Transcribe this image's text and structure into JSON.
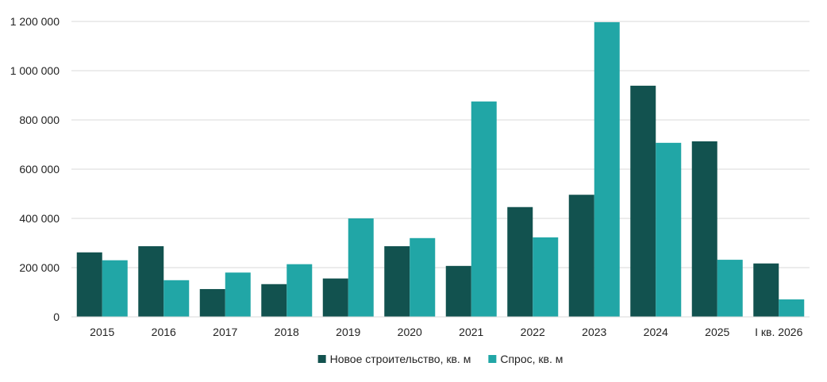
{
  "chart_data": {
    "type": "bar",
    "categories": [
      "2015",
      "2016",
      "2017",
      "2018",
      "2019",
      "2020",
      "2021",
      "2022",
      "2023",
      "2024",
      "2025",
      "I кв. 2026"
    ],
    "series": [
      {
        "name": "Новое строительство, кв. м",
        "color": "#12524f",
        "values": [
          262000,
          287000,
          113000,
          133000,
          156000,
          287000,
          207000,
          446000,
          496000,
          939000,
          713000,
          217000
        ]
      },
      {
        "name": "Спрос, кв. м",
        "color": "#21a6a6",
        "values": [
          230000,
          149000,
          180000,
          214000,
          400000,
          320000,
          875000,
          323000,
          1197000,
          707000,
          232000,
          71000
        ]
      }
    ],
    "ylim": [
      0,
      1200000
    ],
    "yticks": [
      0,
      200000,
      400000,
      600000,
      800000,
      1000000,
      1200000
    ],
    "ytick_labels": [
      "0",
      "200 000",
      "400 000",
      "600 000",
      "800 000",
      "1 000 000",
      "1 200 000"
    ],
    "grid": true,
    "legend_position": "bottom"
  }
}
